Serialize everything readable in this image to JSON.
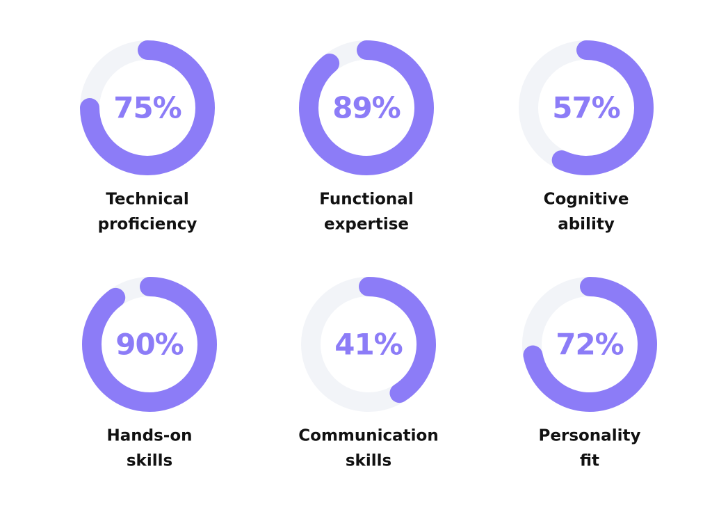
{
  "chart_data": [
    {
      "type": "donut",
      "title_lines": [
        "Technical",
        "proficiency"
      ],
      "values": [
        75
      ],
      "value_labels": [
        "75%"
      ],
      "ylim": [
        0,
        100
      ],
      "color": "#8c7cf7",
      "track_color": "#f2f4f8"
    },
    {
      "type": "donut",
      "title_lines": [
        "Functional",
        "expertise"
      ],
      "values": [
        89
      ],
      "value_labels": [
        "89%"
      ],
      "ylim": [
        0,
        100
      ],
      "color": "#8c7cf7",
      "track_color": "#f2f4f8"
    },
    {
      "type": "donut",
      "title_lines": [
        "Cognitive",
        "ability"
      ],
      "values": [
        57
      ],
      "value_labels": [
        "57%"
      ],
      "ylim": [
        0,
        100
      ],
      "color": "#8c7cf7",
      "track_color": "#f2f4f8"
    },
    {
      "type": "donut",
      "title_lines": [
        "Hands-on",
        "skills"
      ],
      "values": [
        90
      ],
      "value_labels": [
        "90%"
      ],
      "ylim": [
        0,
        100
      ],
      "color": "#8c7cf7",
      "track_color": "#f2f4f8"
    },
    {
      "type": "donut",
      "title_lines": [
        "Communication",
        "skills"
      ],
      "values": [
        41
      ],
      "value_labels": [
        "41%"
      ],
      "ylim": [
        0,
        100
      ],
      "color": "#8c7cf7",
      "track_color": "#f2f4f8"
    },
    {
      "type": "donut",
      "title_lines": [
        "Personality",
        "fit"
      ],
      "values": [
        72
      ],
      "value_labels": [
        "72%"
      ],
      "ylim": [
        0,
        100
      ],
      "color": "#8c7cf7",
      "track_color": "#f2f4f8"
    }
  ]
}
